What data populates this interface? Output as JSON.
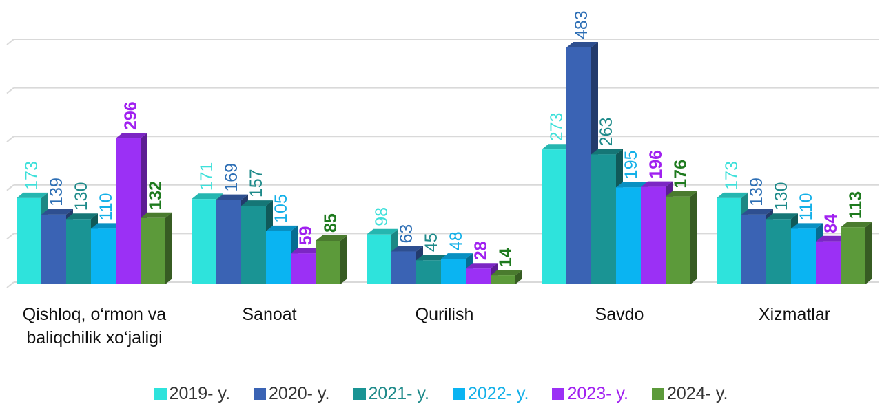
{
  "chart_data": {
    "type": "bar3d",
    "categories": [
      "Qishloq, o‘rmon va baliqchilik xo‘jaligi",
      "Sanoat",
      "Qurilish",
      "Savdo",
      "Xizmatlar"
    ],
    "series": [
      {
        "name": "2019- y.",
        "color": "#2ee3dc",
        "label_color": "#3ee0da",
        "label_bold": false,
        "values": [
          173,
          171,
          98,
          273,
          173
        ]
      },
      {
        "name": "2020- y.",
        "color": "#3a63b4",
        "label_color": "#2e6fb5",
        "label_bold": false,
        "values": [
          139,
          169,
          63,
          483,
          139
        ]
      },
      {
        "name": "2021- y.",
        "color": "#1a9494",
        "label_color": "#1e8a8a",
        "label_bold": false,
        "values": [
          130,
          157,
          45,
          263,
          130
        ]
      },
      {
        "name": "2022- y.",
        "color": "#0ab4f2",
        "label_color": "#13b0e8",
        "label_bold": false,
        "values": [
          110,
          105,
          48,
          195,
          110
        ]
      },
      {
        "name": "2023- y.",
        "color": "#9b30f5",
        "label_color": "#a020f0",
        "label_bold": true,
        "values": [
          296,
          59,
          28,
          196,
          84
        ]
      },
      {
        "name": "2024- y.",
        "color": "#5c9a3a",
        "label_color": "#1e7a1e",
        "label_bold": true,
        "values": [
          132,
          85,
          14,
          176,
          113
        ]
      }
    ],
    "ylim": [
      0,
      500
    ],
    "yticks": [
      0,
      100,
      200,
      300,
      400,
      500
    ],
    "grid": true
  }
}
